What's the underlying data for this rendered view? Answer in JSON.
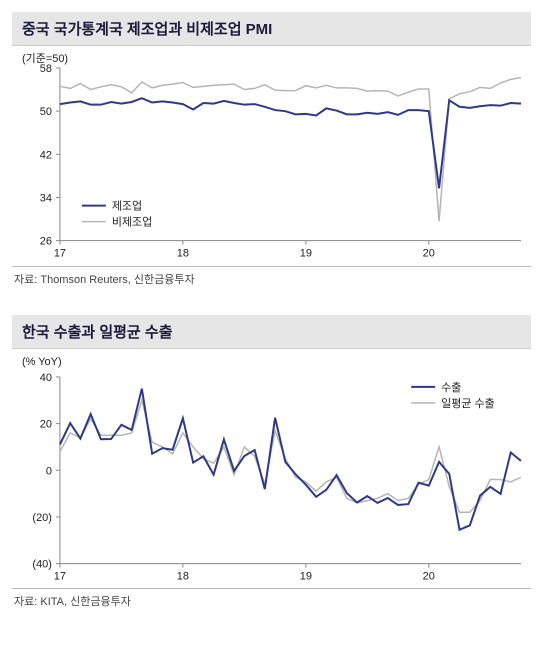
{
  "chart1": {
    "title": "중국 국가통계국 제조업과 비제조업 PMI",
    "ylabel": "(기준=50)",
    "source": "자료: Thomson Reuters, 신한금융투자",
    "type": "line",
    "ylim": [
      26,
      58
    ],
    "ytick_step": 8,
    "yticks": [
      26,
      34,
      42,
      50,
      58
    ],
    "xticks": [
      "17",
      "18",
      "19",
      "20"
    ],
    "xtick_positions": [
      0,
      12,
      24,
      36
    ],
    "n_points": 46,
    "background_color": "#ffffff",
    "grid_color": "#dddddd",
    "axis_color": "#888888",
    "line_width_main": 2,
    "line_width_alt": 1.5,
    "legend": [
      {
        "label": "제조업",
        "color": "#2e3a87"
      },
      {
        "label": "비제조업",
        "color": "#b5b5b5"
      }
    ],
    "series": {
      "mfg": {
        "color": "#2e3a87",
        "values": [
          51.3,
          51.6,
          51.8,
          51.2,
          51.2,
          51.7,
          51.4,
          51.7,
          52.4,
          51.6,
          51.8,
          51.6,
          51.3,
          50.3,
          51.5,
          51.4,
          51.9,
          51.5,
          51.2,
          51.3,
          50.8,
          50.2,
          50.0,
          49.4,
          49.5,
          49.2,
          50.5,
          50.1,
          49.4,
          49.4,
          49.7,
          49.5,
          49.8,
          49.3,
          50.2,
          50.2,
          50.0,
          35.7,
          52.0,
          50.8,
          50.6,
          50.9,
          51.1,
          51.0,
          51.5,
          51.4
        ]
      },
      "nonmfg": {
        "color": "#b5b5b5",
        "values": [
          54.6,
          54.2,
          55.1,
          54.0,
          54.5,
          54.9,
          54.5,
          53.4,
          55.4,
          54.3,
          54.8,
          55.0,
          55.3,
          54.4,
          54.6,
          54.8,
          54.9,
          55.0,
          54.0,
          54.2,
          54.9,
          53.9,
          53.8,
          53.8,
          54.7,
          54.3,
          54.8,
          54.3,
          54.3,
          54.2,
          53.7,
          53.8,
          53.7,
          52.8,
          53.5,
          54.1,
          54.1,
          29.6,
          52.3,
          53.2,
          53.6,
          54.4,
          54.2,
          55.2,
          55.9,
          56.2
        ]
      }
    }
  },
  "chart2": {
    "title": "한국 수출과 일평균 수출",
    "ylabel": "(% YoY)",
    "source": "자료: KITA, 신한금융투자",
    "type": "line",
    "ylim": [
      -40,
      40
    ],
    "ytick_step": 20,
    "yticks": [
      -40,
      -20,
      0,
      20,
      40
    ],
    "ytick_labels": [
      "(40)",
      "(20)",
      "0",
      "20",
      "40"
    ],
    "xticks": [
      "17",
      "18",
      "19",
      "20"
    ],
    "xtick_positions": [
      0,
      12,
      24,
      36
    ],
    "n_points": 46,
    "background_color": "#ffffff",
    "grid_color": "#dddddd",
    "axis_color": "#888888",
    "line_width_main": 2,
    "line_width_alt": 1.5,
    "legend": [
      {
        "label": "수출",
        "color": "#2e3a87"
      },
      {
        "label": "일평균 수출",
        "color": "#b5b5b5"
      }
    ],
    "series": {
      "exports": {
        "color": "#2e3a87",
        "values": [
          11.1,
          20.2,
          13.6,
          24.1,
          13.3,
          13.4,
          19.5,
          17.3,
          35.0,
          7.1,
          9.5,
          8.8,
          22.3,
          3.3,
          6.0,
          -1.9,
          13.2,
          -0.3,
          6.1,
          8.7,
          -8.1,
          22.5,
          3.6,
          -1.7,
          -6.2,
          -11.4,
          -8.4,
          -2.1,
          -9.8,
          -13.8,
          -11.1,
          -14.0,
          -11.9,
          -14.9,
          -14.5,
          -5.3,
          -6.6,
          3.6,
          -1.6,
          -25.5,
          -23.6,
          -10.9,
          -7.1,
          -10.1,
          7.6,
          4.0
        ]
      },
      "daily_exports": {
        "color": "#b5b5b5",
        "values": [
          8.0,
          16.0,
          14.0,
          22.0,
          15.0,
          15.0,
          15.0,
          16.0,
          30.0,
          12.0,
          10.0,
          7.0,
          16.0,
          10.0,
          5.0,
          3.0,
          10.0,
          -2.0,
          10.0,
          6.0,
          -6.0,
          17.0,
          5.0,
          -3.0,
          -5.0,
          -9.0,
          -5.0,
          -3.0,
          -12.0,
          -14.0,
          -13.0,
          -12.0,
          -10.0,
          -13.0,
          -12.0,
          -6.0,
          -4.0,
          10.0,
          -7.0,
          -18.0,
          -18.0,
          -13.0,
          -4.0,
          -4.0,
          -5.0,
          -3.0
        ]
      }
    }
  }
}
